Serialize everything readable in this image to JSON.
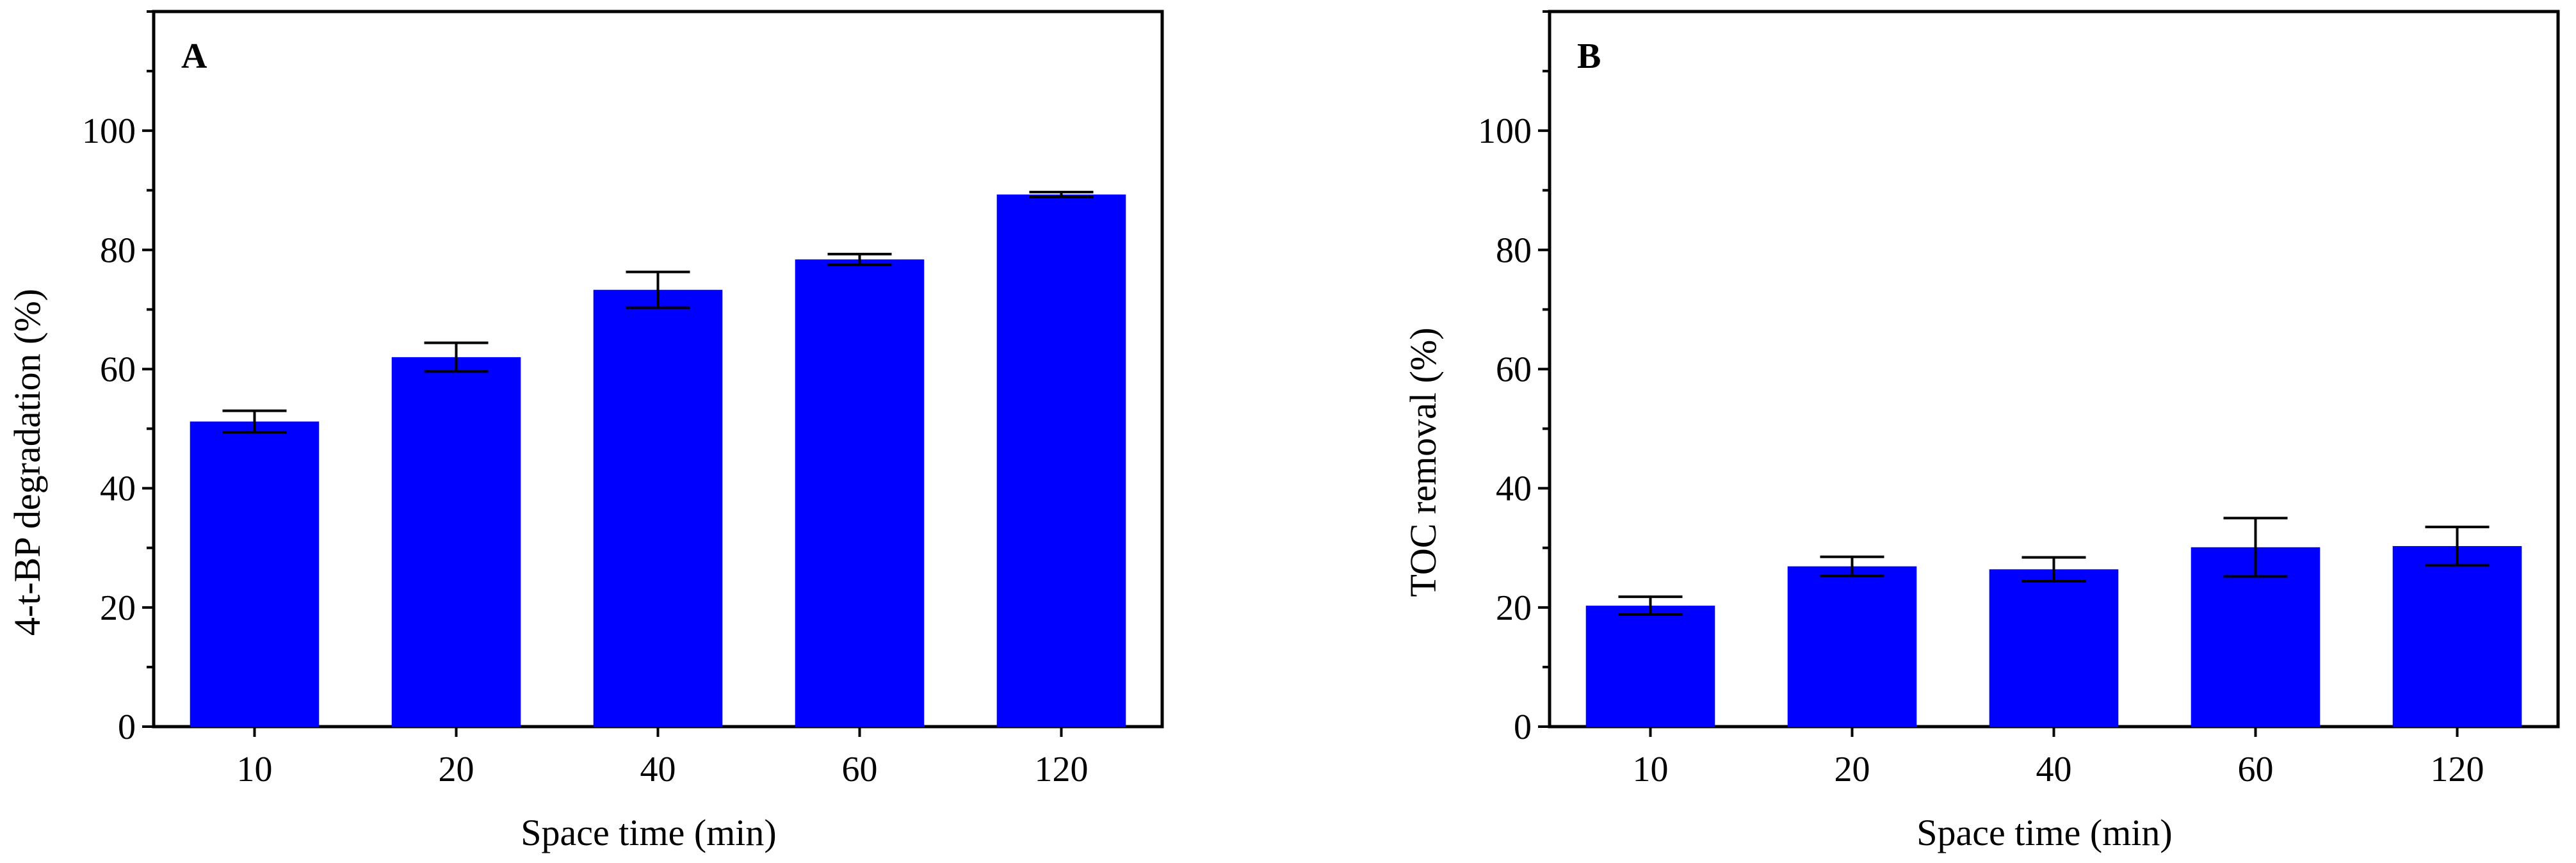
{
  "colors": {
    "bar": "#0000FF",
    "axis": "#000000",
    "error_bar": "#000000"
  },
  "chart_data": [
    {
      "type": "bar",
      "panel_label": "A",
      "categories": [
        "10",
        "20",
        "40",
        "60",
        "120"
      ],
      "values": [
        51.2,
        62.0,
        73.3,
        78.4,
        89.3
      ],
      "errors": [
        1.8,
        2.4,
        3.0,
        0.9,
        0.4
      ],
      "xlabel": "Space time (min)",
      "ylabel": "4-t-BP degradation (%)",
      "ylim": [
        0,
        120
      ],
      "yticks": [
        0,
        20,
        40,
        60,
        80,
        100
      ],
      "grid": false,
      "legend": "none"
    },
    {
      "type": "bar",
      "panel_label": "B",
      "categories": [
        "10",
        "20",
        "40",
        "60",
        "120"
      ],
      "values": [
        20.3,
        26.9,
        26.4,
        30.1,
        30.3
      ],
      "errors": [
        1.5,
        1.6,
        2.0,
        4.9,
        3.2
      ],
      "xlabel": "Space time (min)",
      "ylabel": "TOC removal (%)",
      "ylim": [
        0,
        120
      ],
      "yticks": [
        0,
        20,
        40,
        60,
        80,
        100
      ],
      "grid": false,
      "legend": "none"
    }
  ]
}
